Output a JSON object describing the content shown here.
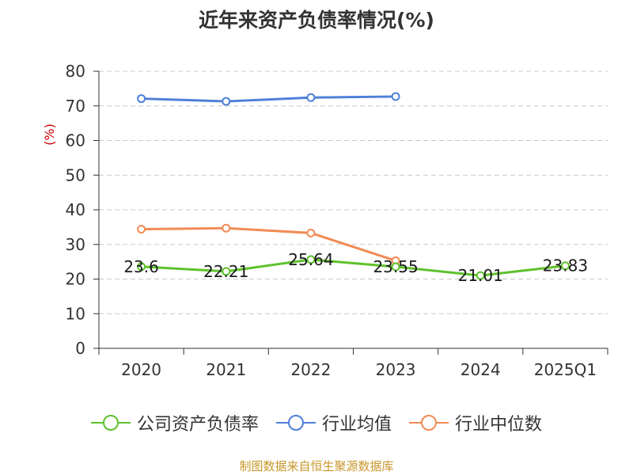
{
  "chart_data": {
    "type": "line",
    "title": "近年来资产负债率情况(%)",
    "ylabel": "(%)",
    "xlabel": "",
    "ylim": [
      0,
      80
    ],
    "yticks": [
      0,
      10,
      20,
      30,
      40,
      50,
      60,
      70,
      80
    ],
    "categories": [
      "2020",
      "2021",
      "2022",
      "2023",
      "2024",
      "2025Q1"
    ],
    "grid": true,
    "legend_position": "bottom",
    "series": [
      {
        "name": "公司资产负债率",
        "color": "#5ec12b",
        "values": [
          23.6,
          22.21,
          25.64,
          23.55,
          21.01,
          23.83
        ],
        "data_labels": [
          "23.6",
          "22.21",
          "25.64",
          "23.55",
          "21.01",
          "23.83"
        ]
      },
      {
        "name": "行业均值",
        "color": "#4f7fd9",
        "values": [
          72.1,
          71.3,
          72.4,
          72.7,
          null,
          null
        ]
      },
      {
        "name": "行业中位数",
        "color": "#f28b54",
        "values": [
          34.4,
          34.7,
          33.3,
          25.3,
          null,
          null
        ]
      }
    ]
  },
  "source": "制图数据来自恒生聚源数据库"
}
